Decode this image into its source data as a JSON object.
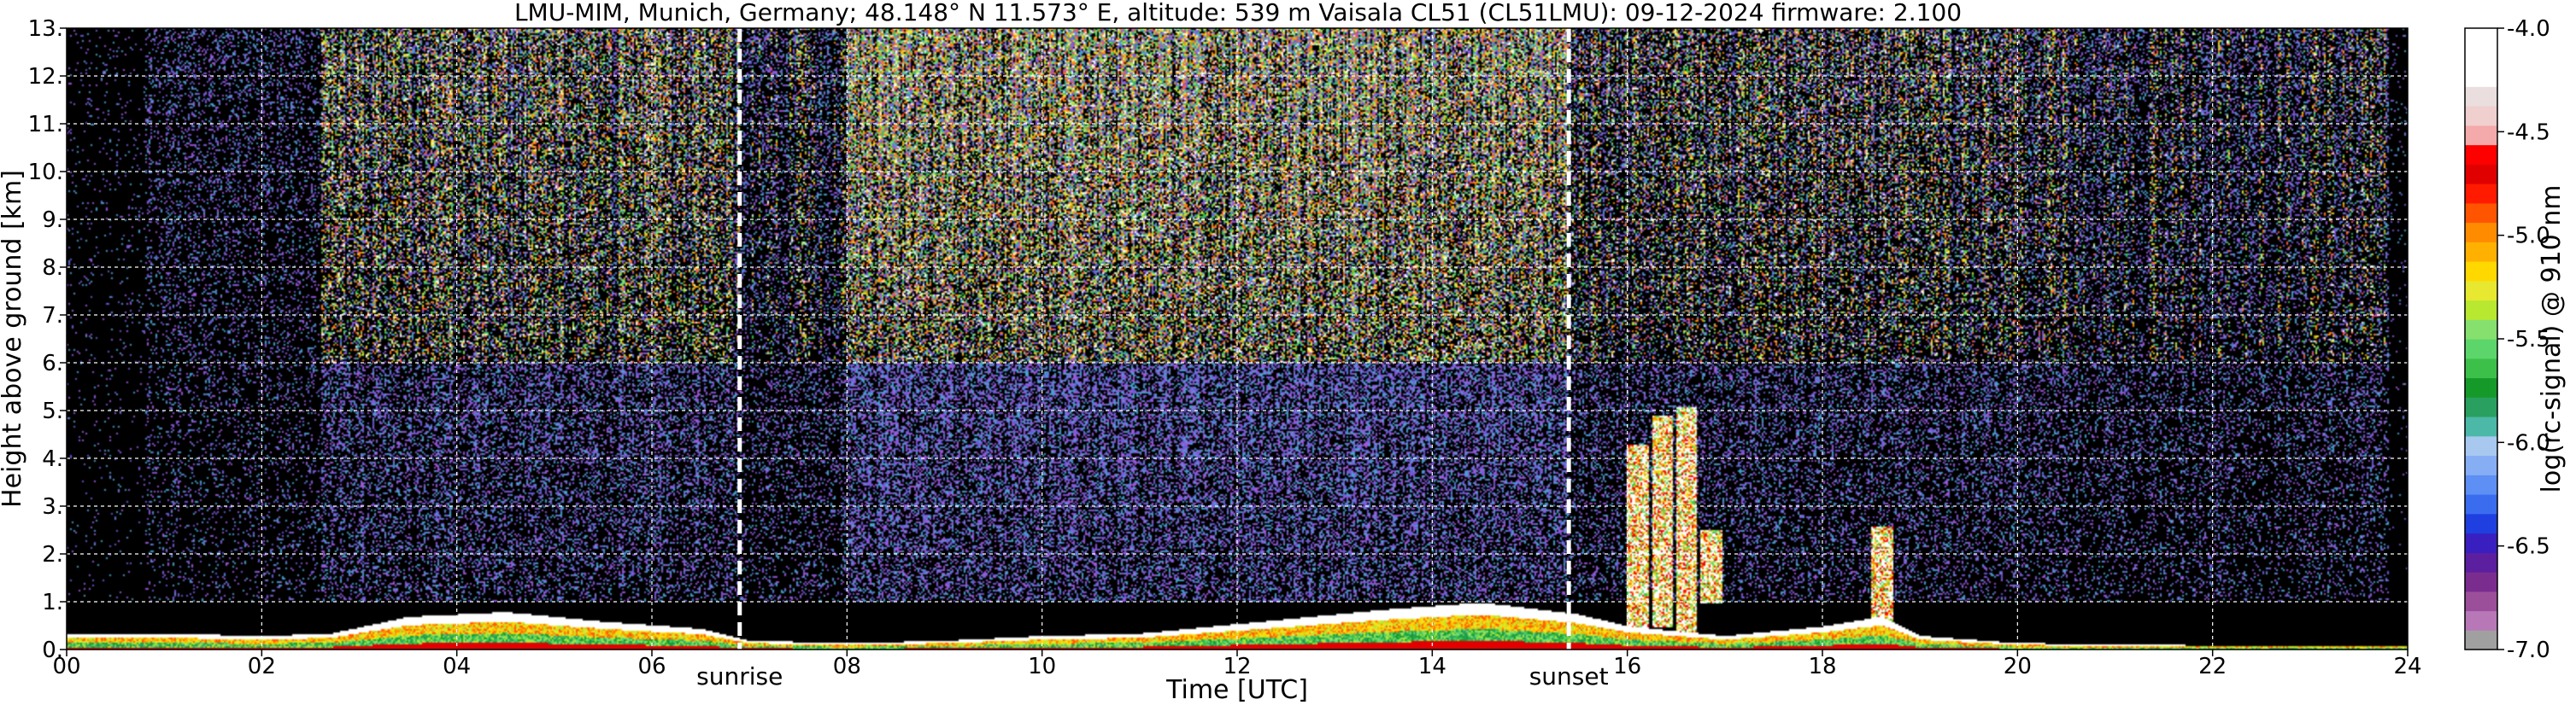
{
  "chart_data": {
    "type": "heatmap",
    "title": "LMU-MIM, Munich, Germany; 48.148° N 11.573° E, altitude: 539 m    Vaisala CL51 (CL51LMU): 09-12-2024    firmware: 2.100",
    "xlabel": "Time [UTC]",
    "ylabel": "Height above ground [km]",
    "xlim": [
      0,
      24
    ],
    "ylim": [
      0,
      13
    ],
    "x_ticks": [
      0,
      2,
      4,
      6,
      8,
      10,
      12,
      14,
      16,
      18,
      20,
      22,
      24
    ],
    "x_tick_labels": [
      "00",
      "02",
      "04",
      "06",
      "08",
      "10",
      "12",
      "14",
      "16",
      "18",
      "20",
      "22",
      "24"
    ],
    "y_ticks": [
      0,
      1,
      2,
      3,
      4,
      5,
      6,
      7,
      8,
      9,
      10,
      11,
      12,
      13
    ],
    "y_tick_labels": [
      "0.",
      "1.",
      "2.",
      "3.",
      "4.",
      "5.",
      "6.",
      "7.",
      "8.",
      "9.",
      "10.",
      "11.",
      "12.",
      "13."
    ],
    "grid": true,
    "colorbar": {
      "label": "log(rc-signal) @ 910 nm",
      "range": [
        -7.0,
        -4.0
      ],
      "ticks": [
        -7.0,
        -6.5,
        -6.0,
        -5.5,
        -5.0,
        -4.5,
        -4.0
      ],
      "tick_labels": [
        "-7.0",
        "-6.5",
        "-6.0",
        "-5.5",
        "-5.0",
        "-4.5",
        "-4.0"
      ],
      "colors": [
        "#a0a0a0",
        "#b878b8",
        "#9b4f9b",
        "#7a2d8f",
        "#5b1fa0",
        "#3a1fc0",
        "#1f3fe0",
        "#3a6cf0",
        "#5d8ff5",
        "#86aef5",
        "#a8c8f0",
        "#4bb8a8",
        "#2aa060",
        "#159a2a",
        "#3cc04a",
        "#5cd66b",
        "#86e06e",
        "#b8e830",
        "#e8e830",
        "#ffd800",
        "#ffb000",
        "#ff8c00",
        "#ff5500",
        "#ff1a00",
        "#e00000",
        "#ff0000",
        "#f4aaaa",
        "#f0cfcf",
        "#eadede",
        "#ffffff",
        "#ffffff",
        "#ffffff"
      ]
    },
    "markers": [
      {
        "label": "sunrise",
        "time": 6.9
      },
      {
        "label": "sunset",
        "time": 15.4
      }
    ],
    "boundary_layer_top_km": [
      [
        0,
        0.35
      ],
      [
        1,
        0.35
      ],
      [
        2,
        0.3
      ],
      [
        2.7,
        0.35
      ],
      [
        3.5,
        0.7
      ],
      [
        4.5,
        0.8
      ],
      [
        5.5,
        0.6
      ],
      [
        6.5,
        0.45
      ],
      [
        7,
        0.2
      ],
      [
        8,
        0.15
      ],
      [
        9,
        0.2
      ],
      [
        10,
        0.3
      ],
      [
        11,
        0.35
      ],
      [
        12,
        0.55
      ],
      [
        13.5,
        0.85
      ],
      [
        14.5,
        1.0
      ],
      [
        15.5,
        0.75
      ],
      [
        16,
        0.5
      ],
      [
        17,
        0.3
      ],
      [
        18,
        0.5
      ],
      [
        18.6,
        0.7
      ],
      [
        19,
        0.3
      ],
      [
        20,
        0.15
      ],
      [
        22,
        0.1
      ],
      [
        24,
        0.1
      ]
    ],
    "cloud_events": [
      {
        "time": 16.1,
        "base_km": 0.3,
        "top_km": 4.3
      },
      {
        "time": 16.35,
        "base_km": 0.5,
        "top_km": 4.9
      },
      {
        "time": 16.6,
        "base_km": 0.3,
        "top_km": 5.1
      },
      {
        "time": 16.85,
        "base_km": 1.0,
        "top_km": 2.5
      },
      {
        "time": 18.6,
        "base_km": 0.4,
        "top_km": 2.6
      }
    ]
  }
}
